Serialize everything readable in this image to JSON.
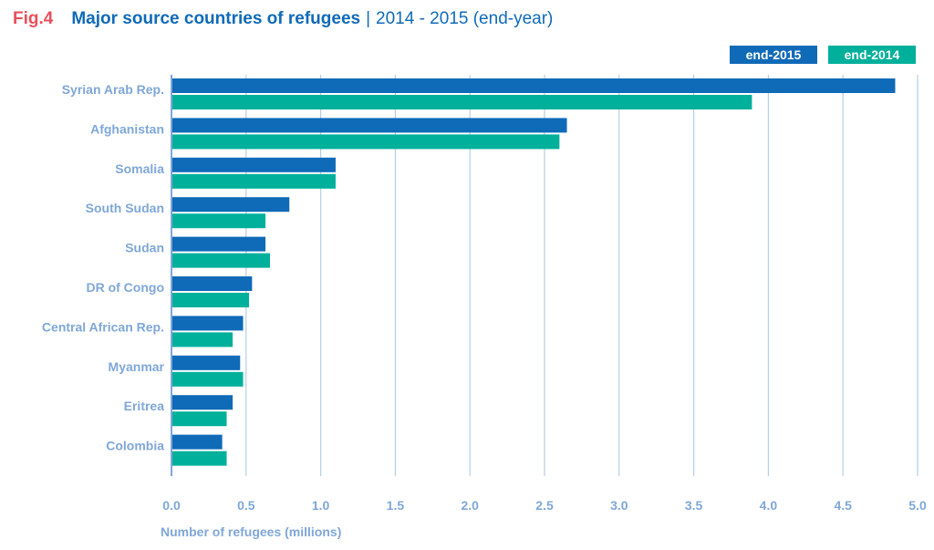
{
  "figure": {
    "label": "Fig.4",
    "title": "Major source countries of refugees",
    "separator": "|",
    "subtitle": "2014 - 2015 (end-year)"
  },
  "colors": {
    "end2015": "#0f6ab8",
    "end2014": "#00b09b",
    "grid": "#b7cde6",
    "axis": "#7fa7d8"
  },
  "chart_data": {
    "type": "bar",
    "orientation": "horizontal",
    "title": "Major source countries of refugees | 2014 - 2015 (end-year)",
    "xlabel": "Number of refugees (millions)",
    "ylabel": "",
    "xlim": [
      0,
      5
    ],
    "xticks": [
      "0.0",
      "0.5",
      "1.0",
      "1.5",
      "2.0",
      "2.5",
      "3.0",
      "3.5",
      "4.0",
      "4.5",
      "5.0"
    ],
    "grid": true,
    "legend_position": "top-right",
    "categories": [
      "Syrian Arab Rep.",
      "Afghanistan",
      "Somalia",
      "South Sudan",
      "Sudan",
      "DR of Congo",
      "Central African Rep.",
      "Myanmar",
      "Eritrea",
      "Colombia"
    ],
    "series": [
      {
        "name": "end-2015",
        "values": [
          4.85,
          2.65,
          1.1,
          0.79,
          0.63,
          0.54,
          0.48,
          0.46,
          0.41,
          0.34
        ]
      },
      {
        "name": "end-2014",
        "values": [
          3.89,
          2.6,
          1.1,
          0.63,
          0.66,
          0.52,
          0.41,
          0.48,
          0.37,
          0.37
        ]
      }
    ]
  }
}
